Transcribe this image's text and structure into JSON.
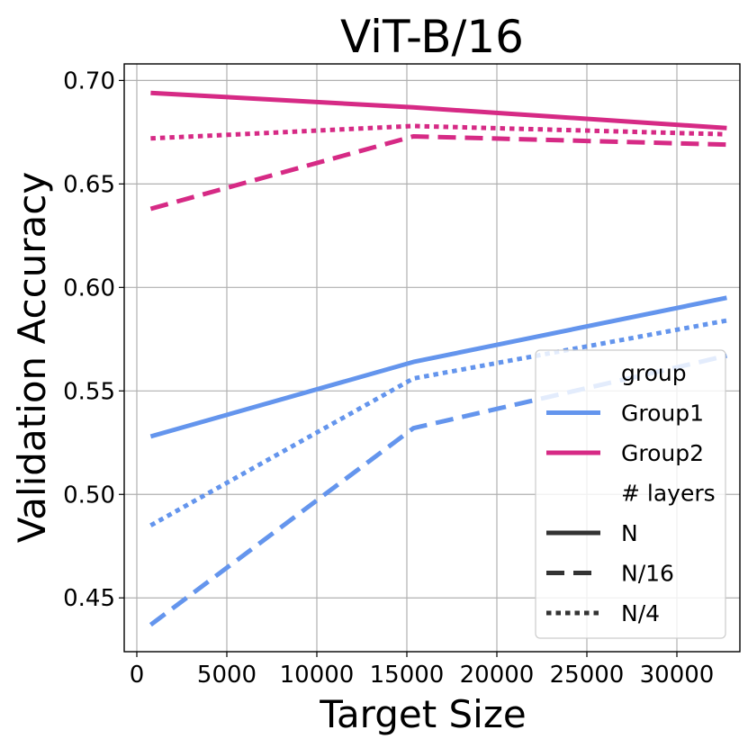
{
  "chart_data": {
    "type": "line",
    "title": "ViT-B/16",
    "xlabel": "Target Size",
    "ylabel": "Validation Accuracy",
    "xlim": [
      -700,
      33500
    ],
    "ylim": [
      0.424,
      0.708
    ],
    "xticks": [
      0,
      5000,
      10000,
      15000,
      20000,
      25000,
      30000
    ],
    "xtick_labels": [
      "0",
      "5000",
      "10000",
      "15000",
      "20000",
      "25000",
      "30000"
    ],
    "yticks": [
      0.45,
      0.5,
      0.55,
      0.6,
      0.65,
      0.7
    ],
    "ytick_labels": [
      "0.45",
      "0.50",
      "0.55",
      "0.60",
      "0.65",
      "0.70"
    ],
    "grid": true,
    "series": [
      {
        "name": "Group1 N",
        "group": "Group1",
        "layers": "N",
        "color": "#6495ed",
        "dash": "solid",
        "x": [
          768,
          15360,
          32768
        ],
        "y": [
          0.528,
          0.564,
          0.595
        ]
      },
      {
        "name": "Group1 N/16",
        "group": "Group1",
        "layers": "N/16",
        "color": "#6495ed",
        "dash": "dashed",
        "x": [
          768,
          15360,
          32768
        ],
        "y": [
          0.437,
          0.532,
          0.567
        ]
      },
      {
        "name": "Group1 N/4",
        "group": "Group1",
        "layers": "N/4",
        "color": "#6495ed",
        "dash": "dotted",
        "x": [
          768,
          15360,
          32768
        ],
        "y": [
          0.485,
          0.556,
          0.584
        ]
      },
      {
        "name": "Group2 N",
        "group": "Group2",
        "layers": "N",
        "color": "#d62a85",
        "dash": "solid",
        "x": [
          768,
          15360,
          32768
        ],
        "y": [
          0.694,
          0.687,
          0.677
        ]
      },
      {
        "name": "Group2 N/16",
        "group": "Group2",
        "layers": "N/16",
        "color": "#d62a85",
        "dash": "dashed",
        "x": [
          768,
          15360,
          32768
        ],
        "y": [
          0.638,
          0.673,
          0.669
        ]
      },
      {
        "name": "Group2 N/4",
        "group": "Group2",
        "layers": "N/4",
        "color": "#d62a85",
        "dash": "dotted",
        "x": [
          768,
          15360,
          32768
        ],
        "y": [
          0.672,
          0.678,
          0.674
        ]
      }
    ],
    "legend": {
      "position": "lower-right",
      "entries": [
        {
          "label": "group",
          "kind": "heading"
        },
        {
          "label": "Group1",
          "kind": "color",
          "color": "#6495ed"
        },
        {
          "label": "Group2",
          "kind": "color",
          "color": "#d62a85"
        },
        {
          "label": "# layers",
          "kind": "heading"
        },
        {
          "label": "N",
          "kind": "style",
          "dash": "solid",
          "color": "#333333"
        },
        {
          "label": "N/16",
          "kind": "style",
          "dash": "dashed",
          "color": "#333333"
        },
        {
          "label": "N/4",
          "kind": "style",
          "dash": "dotted",
          "color": "#333333"
        }
      ]
    }
  }
}
